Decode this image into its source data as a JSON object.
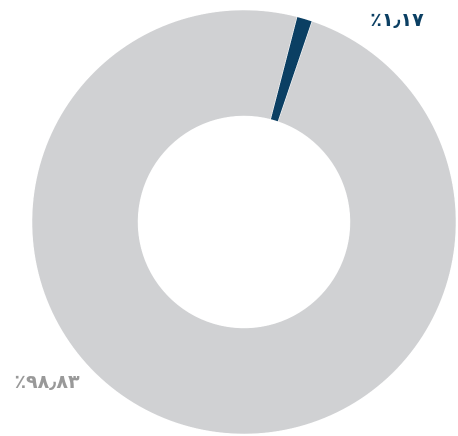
{
  "chart_data": {
    "type": "pie",
    "variant": "donut",
    "title": "",
    "series": [
      {
        "values": [
          1.17,
          98.83
        ],
        "labels": [
          "٪۱٫۱۷",
          "٪۹۸٫۸۳"
        ],
        "colors": [
          "#0b3f63",
          "#d0d1d3"
        ]
      }
    ],
    "label_colors": [
      "#0b3f63",
      "#999999"
    ],
    "legend": "none",
    "grid": false
  }
}
